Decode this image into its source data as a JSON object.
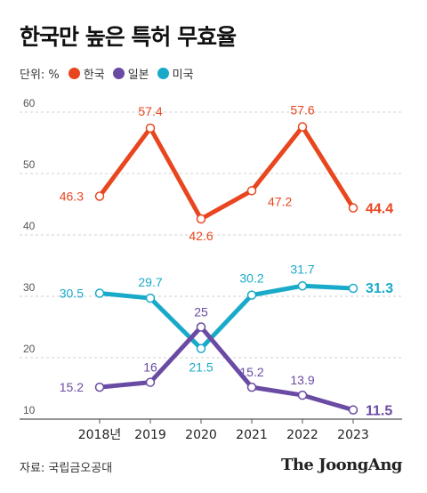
{
  "title": "한국만 높은 특허 무효율",
  "legend": {
    "unit": "단위: %",
    "items": [
      {
        "label": "한국",
        "color": "#e8461f"
      },
      {
        "label": "일본",
        "color": "#6a4ba3"
      },
      {
        "label": "미국",
        "color": "#1aaac9"
      }
    ]
  },
  "source": "자료: 국립금오공대",
  "brand": "The JoongAng",
  "chart_data": {
    "type": "line",
    "categories": [
      "2018년",
      "2019",
      "2020",
      "2021",
      "2022",
      "2023"
    ],
    "ylim": [
      10,
      60
    ],
    "yticks": [
      "10",
      "20",
      "30",
      "40",
      "50",
      "60"
    ],
    "grid": true,
    "series": [
      {
        "name": "한국",
        "color": "#e8461f",
        "values": [
          46.3,
          57.4,
          42.6,
          47.2,
          57.6,
          44.4
        ],
        "labels": [
          "46.3",
          "57.4",
          "42.6",
          "47.2",
          "57.6",
          "44.4"
        ]
      },
      {
        "name": "일본",
        "color": "#6a4ba3",
        "values": [
          15.2,
          16,
          25,
          15.2,
          13.9,
          11.5
        ],
        "labels": [
          "15.2",
          "16",
          "25",
          "15.2",
          "13.9",
          "11.5"
        ]
      },
      {
        "name": "미국",
        "color": "#1aaac9",
        "values": [
          30.5,
          29.7,
          21.5,
          30.2,
          31.7,
          31.3
        ],
        "labels": [
          "30.5",
          "29.7",
          "21.5",
          "30.2",
          "31.7",
          "31.3"
        ]
      }
    ]
  }
}
